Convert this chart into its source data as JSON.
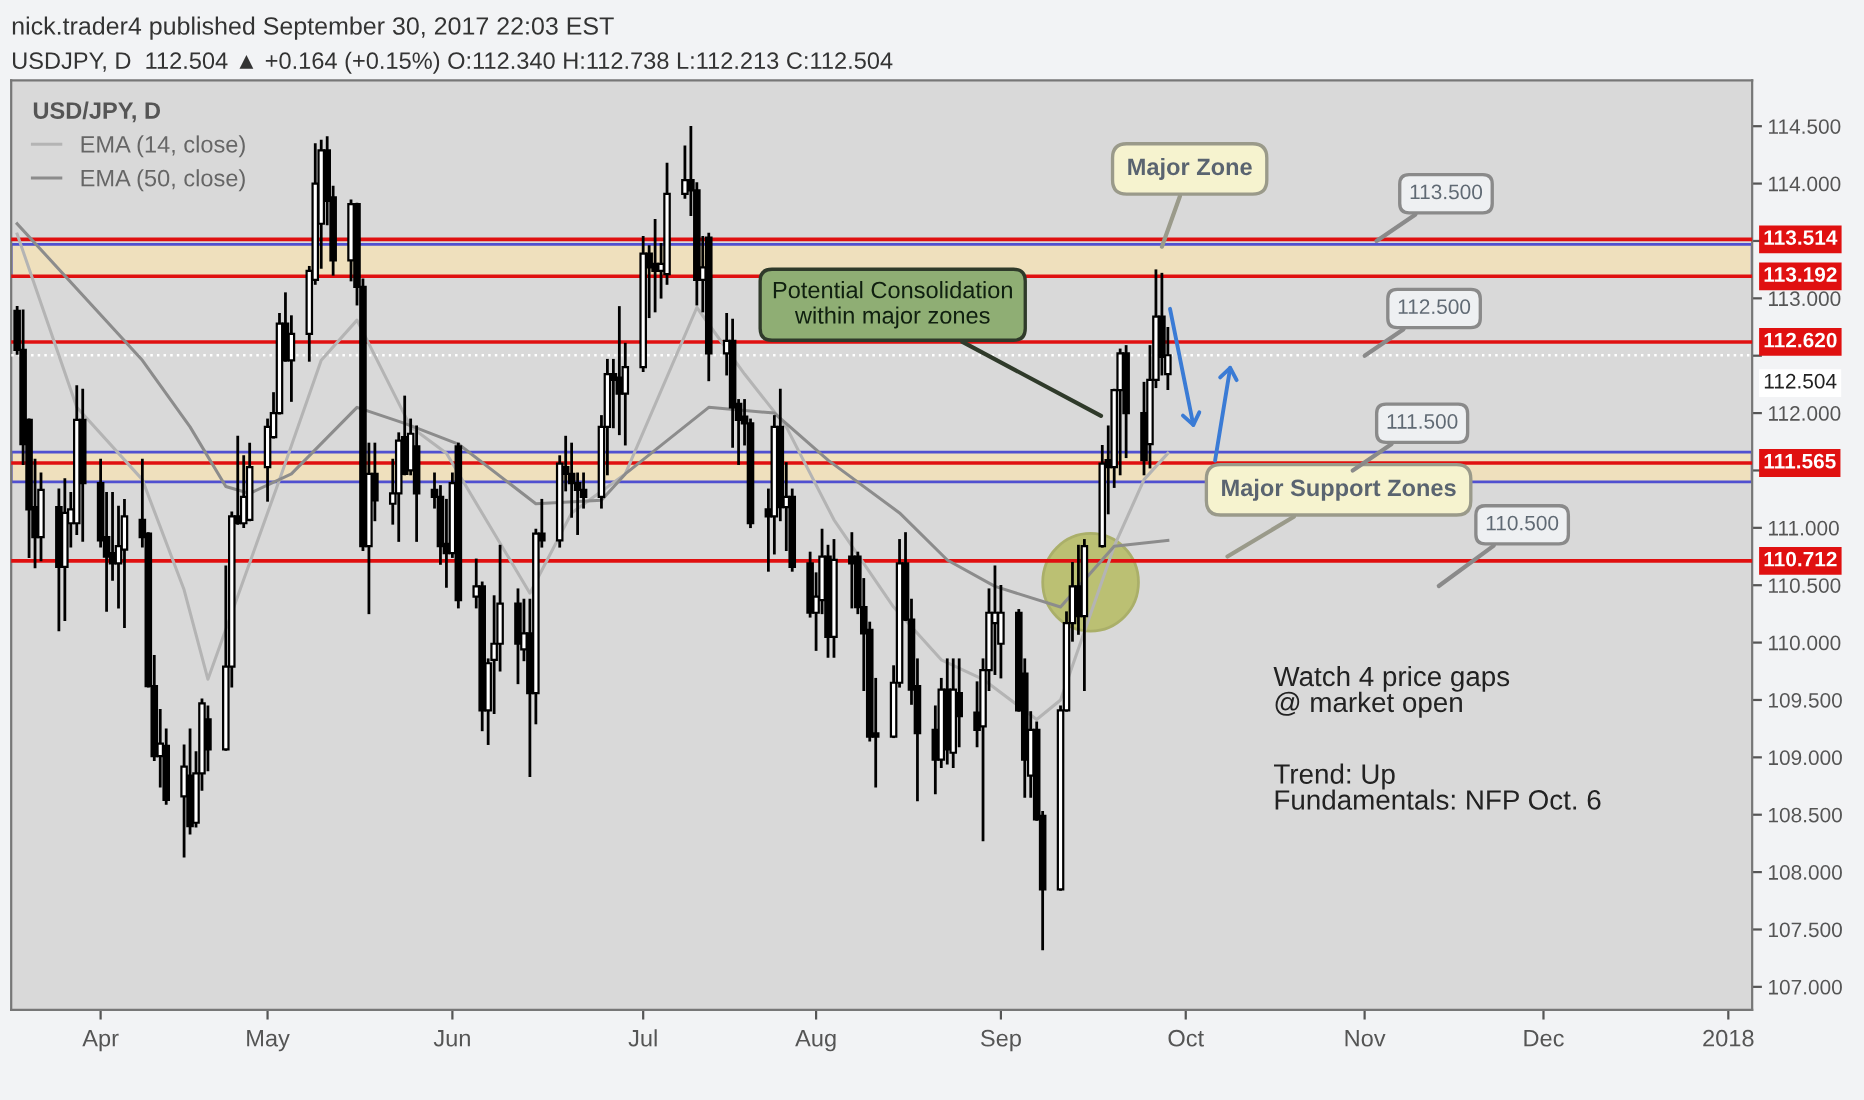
{
  "chart_data": {
    "type": "candlestick",
    "title": "nick.trader4 published September 30, 2017 22:03 EST",
    "subtitle": "USDJPY, D  112.504 ▲ +0.164 (+0.15%) O:112.340 H:112.738 L:112.213 C:112.504",
    "legend_title": "USD/JPY, D",
    "legend": "top left",
    "xlim": [
      "2017-03-19",
      "2018-01-05"
    ],
    "xticks": [
      {
        "value": "2017-04-03",
        "label": "Apr"
      },
      {
        "value": "2017-05-01",
        "label": "May"
      },
      {
        "value": "2017-06-01",
        "label": "Jun"
      },
      {
        "value": "2017-07-03",
        "label": "Jul"
      },
      {
        "value": "2017-08-01",
        "label": "Aug"
      },
      {
        "value": "2017-09-01",
        "label": "Sep"
      },
      {
        "value": "2017-10-02",
        "label": "Oct"
      },
      {
        "value": "2017-11-01",
        "label": "Nov"
      },
      {
        "value": "2017-12-01",
        "label": "Dec"
      },
      {
        "value": "2018-01-01",
        "label": "2018"
      }
    ],
    "ylim": [
      106.8,
      114.9
    ],
    "yticks": [
      {
        "value": 107,
        "label": "107.000"
      },
      {
        "value": 107.5,
        "label": "107.500"
      },
      {
        "value": 108,
        "label": "108.000"
      },
      {
        "value": 108.5,
        "label": "108.500"
      },
      {
        "value": 109,
        "label": "109.000"
      },
      {
        "value": 109.5,
        "label": "109.500"
      },
      {
        "value": 110,
        "label": "110.000"
      },
      {
        "value": 110.5,
        "label": "110.500"
      },
      {
        "value": 111,
        "label": "111.000"
      },
      {
        "value": 111.5,
        "label": null
      },
      {
        "value": 112,
        "label": "112.000"
      },
      {
        "value": 112.5,
        "label": null
      },
      {
        "value": 113,
        "label": "113.000"
      },
      {
        "value": 113.5,
        "label": null
      },
      {
        "value": 114,
        "label": "114.000"
      },
      {
        "value": 114.5,
        "label": "114.500"
      }
    ],
    "series": [
      {
        "color": "#000000",
        "x": [
          "2017-03-20",
          "2017-03-21",
          "2017-03-22",
          "2017-03-23",
          "2017-03-24",
          "2017-03-27",
          "2017-03-28",
          "2017-03-29",
          "2017-03-30",
          "2017-03-31",
          "2017-04-03",
          "2017-04-04",
          "2017-04-05",
          "2017-04-06",
          "2017-04-07",
          "2017-04-10",
          "2017-04-11",
          "2017-04-12",
          "2017-04-13",
          "2017-04-14",
          "2017-04-17",
          "2017-04-18",
          "2017-04-19",
          "2017-04-20",
          "2017-04-21",
          "2017-04-24",
          "2017-04-25",
          "2017-04-26",
          "2017-04-27",
          "2017-04-28",
          "2017-05-01",
          "2017-05-02",
          "2017-05-03",
          "2017-05-04",
          "2017-05-05",
          "2017-05-08",
          "2017-05-09",
          "2017-05-10",
          "2017-05-11",
          "2017-05-12",
          "2017-05-15",
          "2017-05-16",
          "2017-05-17",
          "2017-05-18",
          "2017-05-19",
          "2017-05-22",
          "2017-05-23",
          "2017-05-24",
          "2017-05-25",
          "2017-05-26",
          "2017-05-29",
          "2017-05-30",
          "2017-05-31",
          "2017-06-01",
          "2017-06-02",
          "2017-06-05",
          "2017-06-06",
          "2017-06-07",
          "2017-06-08",
          "2017-06-09",
          "2017-06-12",
          "2017-06-13",
          "2017-06-14",
          "2017-06-15",
          "2017-06-16",
          "2017-06-19",
          "2017-06-20",
          "2017-06-21",
          "2017-06-22",
          "2017-06-23",
          "2017-06-26",
          "2017-06-27",
          "2017-06-28",
          "2017-06-29",
          "2017-06-30",
          "2017-07-03",
          "2017-07-04",
          "2017-07-05",
          "2017-07-06",
          "2017-07-07",
          "2017-07-10",
          "2017-07-11",
          "2017-07-12",
          "2017-07-13",
          "2017-07-14",
          "2017-07-17",
          "2017-07-18",
          "2017-07-19",
          "2017-07-20",
          "2017-07-21",
          "2017-07-24",
          "2017-07-25",
          "2017-07-26",
          "2017-07-27",
          "2017-07-28",
          "2017-07-31",
          "2017-08-01",
          "2017-08-02",
          "2017-08-03",
          "2017-08-04",
          "2017-08-07",
          "2017-08-08",
          "2017-08-09",
          "2017-08-10",
          "2017-08-11",
          "2017-08-14",
          "2017-08-15",
          "2017-08-16",
          "2017-08-17",
          "2017-08-18",
          "2017-08-21",
          "2017-08-22",
          "2017-08-23",
          "2017-08-24",
          "2017-08-25",
          "2017-08-28",
          "2017-08-29",
          "2017-08-30",
          "2017-08-31",
          "2017-09-01",
          "2017-09-04",
          "2017-09-05",
          "2017-09-06",
          "2017-09-07",
          "2017-09-08",
          "2017-09-11",
          "2017-09-12",
          "2017-09-13",
          "2017-09-14",
          "2017-09-15",
          "2017-09-18",
          "2017-09-19",
          "2017-09-20",
          "2017-09-21",
          "2017-09-22",
          "2017-09-25",
          "2017-09-26",
          "2017-09-27",
          "2017-09-28",
          "2017-09-29"
        ],
        "ohlc": [
          [
            112.89,
            112.92,
            112.52,
            112.55
          ],
          [
            112.55,
            112.89,
            111.56,
            111.73
          ],
          [
            111.94,
            111.94,
            110.75,
            111.16
          ],
          [
            111.18,
            111.59,
            110.66,
            110.92
          ],
          [
            110.92,
            111.47,
            110.72,
            111.33
          ],
          [
            111.18,
            111.33,
            110.11,
            110.66
          ],
          [
            110.66,
            111.42,
            110.2,
            111.13
          ],
          [
            111.04,
            111.3,
            110.84,
            111.16
          ],
          [
            111.04,
            112.23,
            110.95,
            111.94
          ],
          [
            111.94,
            112.2,
            110.89,
            111.39
          ],
          [
            111.39,
            111.59,
            110.84,
            110.89
          ],
          [
            110.92,
            111.3,
            110.28,
            110.75
          ],
          [
            110.78,
            111.3,
            110.55,
            110.69
          ],
          [
            110.69,
            111.18,
            110.31,
            110.84
          ],
          [
            110.81,
            111.24,
            110.14,
            111.1
          ],
          [
            111.07,
            111.59,
            110.84,
            110.92
          ],
          [
            110.95,
            110.95,
            109.62,
            109.62
          ],
          [
            109.62,
            109.88,
            108.98,
            109.01
          ],
          [
            109.01,
            109.41,
            108.75,
            109.12
          ],
          [
            109.1,
            109.24,
            108.6,
            108.63
          ],
          [
            108.66,
            109.1,
            108.14,
            108.92
          ],
          [
            108.84,
            109.24,
            108.34,
            108.4
          ],
          [
            108.43,
            109.04,
            108.4,
            108.86
          ],
          [
            108.86,
            109.5,
            108.72,
            109.47
          ],
          [
            109.33,
            109.44,
            108.89,
            109.07
          ],
          [
            109.07,
            110.66,
            109.07,
            109.79
          ],
          [
            109.79,
            111.13,
            109.62,
            111.1
          ],
          [
            111.1,
            111.79,
            111.04,
            111.04
          ],
          [
            111.04,
            111.62,
            111.01,
            111.27
          ],
          [
            111.07,
            111.73,
            111.07,
            111.53
          ],
          [
            111.53,
            111.94,
            111.24,
            111.88
          ],
          [
            111.79,
            112.17,
            111.79,
            112.0
          ],
          [
            112.0,
            112.86,
            112.0,
            112.78
          ],
          [
            112.78,
            113.04,
            112.46,
            112.46
          ],
          [
            112.46,
            112.84,
            112.11,
            112.69
          ],
          [
            112.69,
            113.27,
            112.46,
            113.24
          ],
          [
            113.16,
            114.34,
            113.13,
            114.0
          ],
          [
            113.65,
            114.37,
            113.27,
            114.29
          ],
          [
            114.29,
            114.4,
            113.65,
            113.85
          ],
          [
            113.88,
            113.97,
            113.21,
            113.33
          ],
          [
            113.33,
            113.85,
            113.16,
            113.82
          ],
          [
            113.82,
            113.82,
            112.95,
            113.1
          ],
          [
            113.1,
            113.16,
            110.81,
            110.84
          ],
          [
            110.84,
            111.73,
            110.26,
            111.47
          ],
          [
            111.47,
            111.73,
            111.07,
            111.24
          ],
          [
            111.21,
            111.59,
            111.04,
            111.3
          ],
          [
            111.3,
            111.82,
            110.89,
            111.76
          ],
          [
            111.79,
            112.14,
            111.47,
            111.47
          ],
          [
            111.5,
            111.94,
            111.47,
            111.82
          ],
          [
            111.71,
            111.88,
            110.89,
            111.3
          ],
          [
            111.33,
            111.47,
            111.18,
            111.27
          ],
          [
            111.27,
            111.36,
            110.69,
            110.84
          ],
          [
            110.86,
            111.24,
            110.49,
            110.78
          ],
          [
            110.78,
            111.47,
            110.75,
            111.39
          ],
          [
            111.71,
            111.73,
            110.31,
            110.37
          ],
          [
            110.4,
            110.72,
            110.31,
            110.49
          ],
          [
            110.49,
            110.52,
            109.24,
            109.41
          ],
          [
            109.41,
            109.85,
            109.12,
            109.82
          ],
          [
            109.85,
            110.4,
            109.39,
            109.99
          ],
          [
            109.99,
            110.84,
            109.76,
            110.34
          ],
          [
            110.34,
            110.46,
            109.65,
            109.99
          ],
          [
            109.94,
            110.37,
            109.85,
            110.08
          ],
          [
            110.08,
            110.37,
            108.84,
            109.56
          ],
          [
            109.56,
            110.98,
            109.3,
            110.95
          ],
          [
            110.95,
            111.24,
            110.84,
            110.89
          ],
          [
            110.89,
            111.62,
            110.84,
            111.56
          ],
          [
            111.53,
            111.79,
            111.33,
            111.47
          ],
          [
            111.47,
            111.73,
            111.1,
            111.39
          ],
          [
            111.39,
            111.47,
            110.95,
            111.33
          ],
          [
            111.33,
            111.47,
            111.18,
            111.27
          ],
          [
            111.27,
            111.97,
            111.18,
            111.88
          ],
          [
            111.88,
            112.46,
            111.47,
            112.34
          ],
          [
            112.34,
            112.46,
            111.88,
            112.29
          ],
          [
            112.31,
            112.92,
            111.82,
            112.17
          ],
          [
            112.17,
            112.6,
            111.73,
            112.4
          ],
          [
            112.4,
            113.53,
            112.37,
            113.39
          ],
          [
            113.39,
            113.45,
            112.84,
            113.27
          ],
          [
            113.3,
            113.68,
            112.89,
            113.24
          ],
          [
            113.24,
            113.47,
            113.01,
            113.3
          ],
          [
            113.21,
            114.17,
            113.13,
            113.91
          ],
          [
            113.91,
            114.32,
            113.88,
            114.03
          ],
          [
            114.03,
            114.49,
            113.73,
            113.94
          ],
          [
            113.94,
            114.0,
            112.95,
            113.16
          ],
          [
            113.16,
            113.53,
            112.89,
            113.27
          ],
          [
            113.53,
            113.56,
            112.29,
            112.52
          ],
          [
            112.52,
            112.86,
            112.34,
            112.63
          ],
          [
            112.63,
            112.81,
            111.71,
            112.05
          ],
          [
            112.08,
            112.11,
            111.56,
            111.94
          ],
          [
            111.97,
            112.11,
            111.73,
            111.91
          ],
          [
            111.91,
            111.94,
            111.01,
            111.04
          ],
          [
            111.16,
            111.33,
            110.63,
            111.1
          ],
          [
            111.1,
            111.97,
            110.78,
            111.88
          ],
          [
            111.88,
            112.2,
            111.07,
            111.18
          ],
          [
            111.18,
            111.56,
            110.81,
            111.27
          ],
          [
            111.27,
            111.33,
            110.63,
            110.66
          ],
          [
            110.69,
            110.78,
            110.23,
            110.26
          ],
          [
            110.26,
            110.6,
            109.94,
            110.4
          ],
          [
            110.37,
            110.98,
            110.26,
            110.75
          ],
          [
            110.75,
            110.84,
            109.88,
            110.05
          ],
          [
            110.05,
            110.89,
            109.88,
            110.72
          ],
          [
            110.75,
            110.95,
            110.31,
            110.69
          ],
          [
            110.75,
            110.78,
            110.26,
            110.31
          ],
          [
            110.31,
            110.55,
            109.59,
            110.08
          ],
          [
            110.11,
            110.17,
            109.15,
            109.18
          ],
          [
            109.21,
            109.68,
            108.75,
            109.18
          ],
          [
            109.18,
            109.79,
            109.18,
            109.65
          ],
          [
            109.65,
            110.89,
            109.62,
            110.69
          ],
          [
            110.69,
            110.95,
            110.2,
            110.2
          ],
          [
            110.2,
            110.37,
            109.47,
            109.59
          ],
          [
            109.62,
            109.85,
            108.63,
            109.21
          ],
          [
            109.24,
            109.44,
            108.69,
            108.98
          ],
          [
            108.98,
            109.68,
            108.92,
            109.59
          ],
          [
            109.59,
            109.85,
            108.95,
            109.07
          ],
          [
            109.04,
            109.85,
            108.92,
            109.59
          ],
          [
            109.56,
            109.85,
            109.1,
            109.36
          ],
          [
            109.39,
            109.65,
            109.1,
            109.24
          ],
          [
            109.27,
            109.85,
            108.28,
            109.76
          ],
          [
            109.76,
            110.46,
            109.59,
            110.26
          ],
          [
            110.17,
            110.66,
            109.73,
            110.26
          ],
          [
            109.99,
            110.49,
            109.7,
            110.26
          ],
          [
            110.26,
            110.28,
            109.41,
            109.41
          ],
          [
            109.73,
            109.85,
            108.66,
            108.98
          ],
          [
            108.84,
            109.39,
            108.66,
            109.24
          ],
          [
            109.24,
            109.3,
            108.46,
            108.46
          ],
          [
            108.49,
            108.52,
            107.33,
            107.85
          ],
          [
            107.85,
            109.44,
            107.85,
            109.41
          ],
          [
            109.41,
            110.26,
            109.41,
            110.17
          ],
          [
            110.17,
            110.69,
            110.02,
            110.49
          ],
          [
            110.49,
            110.84,
            110.08,
            110.23
          ],
          [
            110.23,
            110.89,
            109.59,
            110.84
          ],
          [
            110.84,
            111.71,
            110.84,
            111.56
          ],
          [
            111.59,
            111.88,
            111.13,
            111.53
          ],
          [
            111.53,
            112.2,
            111.36,
            112.2
          ],
          [
            112.2,
            112.55,
            111.47,
            112.52
          ],
          [
            112.52,
            112.58,
            111.62,
            112.0
          ],
          [
            112.0,
            112.26,
            111.47,
            111.59
          ],
          [
            111.73,
            112.58,
            111.53,
            112.29
          ],
          [
            112.29,
            113.24,
            112.23,
            112.84
          ],
          [
            112.84,
            113.21,
            112.34,
            112.49
          ],
          [
            112.34,
            112.738,
            112.213,
            112.504
          ]
        ]
      },
      {
        "type": "line",
        "name": "EMA (14, close)",
        "color": "#b4b4b4",
        "x": [
          "2017-03-20",
          "2017-03-30",
          "2017-04-10",
          "2017-04-17",
          "2017-04-21",
          "2017-04-27",
          "2017-05-03",
          "2017-05-10",
          "2017-05-16",
          "2017-05-25",
          "2017-05-31",
          "2017-06-07",
          "2017-06-14",
          "2017-06-21",
          "2017-06-30",
          "2017-07-12",
          "2017-07-20",
          "2017-07-27",
          "2017-08-04",
          "2017-08-14",
          "2017-08-22",
          "2017-08-29",
          "2017-09-07",
          "2017-09-11",
          "2017-09-20",
          "2017-09-25",
          "2017-09-29"
        ],
        "values": [
          113.56,
          112.05,
          111.42,
          110.46,
          109.68,
          110.55,
          111.42,
          112.46,
          112.81,
          111.88,
          111.65,
          111.04,
          110.43,
          111.13,
          111.47,
          112.92,
          112.34,
          111.88,
          111.07,
          110.31,
          109.85,
          109.68,
          109.33,
          109.5,
          110.84,
          111.42,
          111.65
        ]
      },
      {
        "type": "line",
        "name": "EMA (50, close)",
        "color": "#8c8c8c",
        "x": [
          "2017-03-20",
          "2017-04-10",
          "2017-04-18",
          "2017-04-24",
          "2017-04-28",
          "2017-05-05",
          "2017-05-16",
          "2017-05-24",
          "2017-06-02",
          "2017-06-15",
          "2017-06-26",
          "2017-06-30",
          "2017-07-14",
          "2017-07-25",
          "2017-08-03",
          "2017-08-15",
          "2017-08-23",
          "2017-08-31",
          "2017-09-11",
          "2017-09-20",
          "2017-09-29"
        ],
        "values": [
          113.65,
          112.46,
          111.88,
          111.36,
          111.3,
          111.47,
          112.05,
          111.91,
          111.73,
          111.21,
          111.24,
          111.47,
          112.05,
          112.0,
          111.59,
          111.13,
          110.72,
          110.49,
          110.31,
          110.84,
          110.89
        ]
      }
    ],
    "bands": [
      {
        "axis": "y",
        "from": 113.192,
        "to": 113.47,
        "color": "#efe0bd"
      },
      {
        "axis": "y",
        "from": 111.4,
        "to": 111.66,
        "color": "#efe0bd"
      }
    ],
    "ref_lines": [
      {
        "axis": "y",
        "value": 113.514,
        "label": "113.514",
        "color": "#e01010"
      },
      {
        "axis": "y",
        "value": 113.192,
        "label": "113.192",
        "color": "#e01010"
      },
      {
        "axis": "y",
        "value": 112.62,
        "label": "112.620",
        "color": "#e01010"
      },
      {
        "axis": "y",
        "value": 111.565,
        "label": "111.565",
        "color": "#e01010"
      },
      {
        "axis": "y",
        "value": 110.712,
        "label": "110.712",
        "color": "#e01010"
      },
      {
        "axis": "y",
        "value": 112.504,
        "label": "112.504",
        "color": "#ffffff",
        "line_style": "dotted"
      }
    ],
    "annotations": [
      {
        "text": "Major Zone",
        "x": "2017-09-28",
        "y": 113.45
      },
      "Potential Consolidation\nwithin major zones",
      {
        "text": "Major Support Zones",
        "x": "2017-10-09",
        "y": 110.75
      },
      {
        "text": "113.500",
        "x": "2017-11-03",
        "y": 113.5
      },
      {
        "text": "112.500",
        "x": "2017-11-01",
        "y": 112.5
      },
      {
        "text": "111.500",
        "x": "2017-10-30",
        "y": 111.5
      },
      "110.500",
      "Watch 4 price gaps\n@ market open",
      "Trend: Up\nFundamentals: NFP Oct. 6"
    ]
  }
}
